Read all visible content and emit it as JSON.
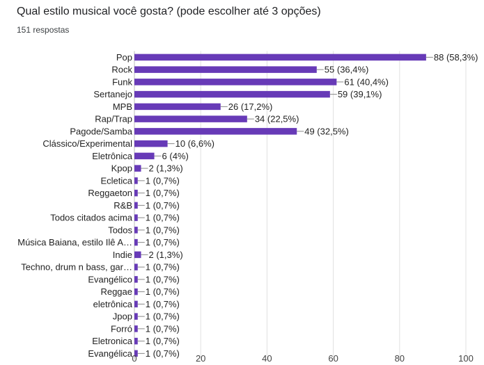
{
  "question": {
    "title": "Qual estilo musical você gosta? (pode escolher até 3 opções)",
    "responses": "151 respostas"
  },
  "chart_data": {
    "type": "bar",
    "orientation": "horizontal",
    "bar_color": "#673ab7",
    "grid": true,
    "xlim": [
      0,
      100
    ],
    "xticks": [
      0,
      20,
      40,
      60,
      80,
      100
    ],
    "categories": [
      "Pop",
      "Rock",
      "Funk",
      "Sertanejo",
      "MPB",
      "Rap/Trap",
      "Pagode/Samba",
      "Clássico/Experimental",
      "Eletrônica",
      "Kpop",
      "Ecletica",
      "Reggaeton",
      "R&B",
      "Todos citados acima",
      "Todos",
      "Música Baiana, estilo Ilê A…",
      "Indie",
      "Techno, drum n bass, gar…",
      "Evangélico",
      "Reggae",
      "eletrônica",
      "Jpop",
      "Forró",
      "Eletronica",
      "Evangélica"
    ],
    "values": [
      88,
      55,
      61,
      59,
      26,
      34,
      49,
      10,
      6,
      2,
      1,
      1,
      1,
      1,
      1,
      1,
      2,
      1,
      1,
      1,
      1,
      1,
      1,
      1,
      1
    ],
    "value_labels": [
      "88 (58,3%)",
      "55 (36,4%)",
      "61 (40,4%)",
      "59 (39,1%)",
      "26 (17,2%)",
      "34 (22,5%)",
      "49 (32,5%)",
      "10 (6,6%)",
      "6 (4%)",
      "2 (1,3%)",
      "1 (0,7%)",
      "1 (0,7%)",
      "1 (0,7%)",
      "1 (0,7%)",
      "1 (0,7%)",
      "1 (0,7%)",
      "2 (1,3%)",
      "1 (0,7%)",
      "1 (0,7%)",
      "1 (0,7%)",
      "1 (0,7%)",
      "1 (0,7%)",
      "1 (0,7%)",
      "1 (0,7%)",
      "1 (0,7%)"
    ]
  }
}
